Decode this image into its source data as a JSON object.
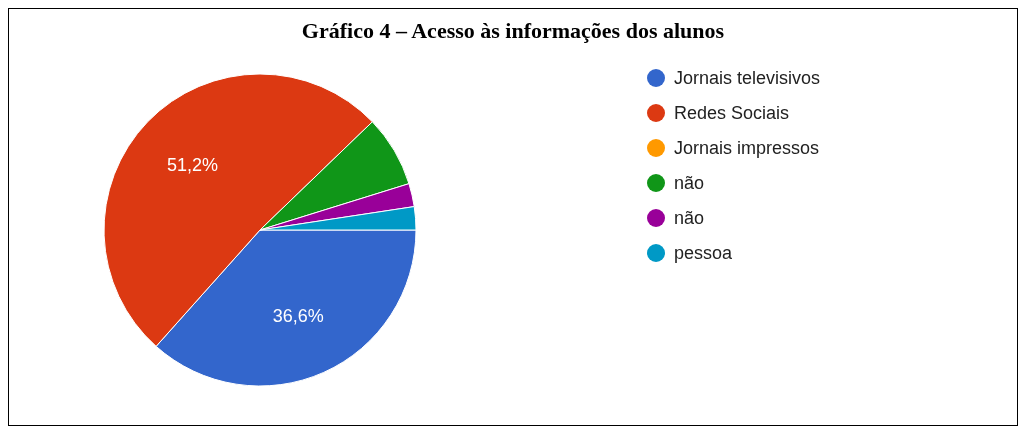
{
  "chart_data": {
    "type": "pie",
    "title": "Gráfico 4 – Acesso às informações dos alunos",
    "categories": [
      "Jornais televisivos",
      "Redes Sociais",
      "Jornais impressos",
      "não",
      "não",
      "pessoa"
    ],
    "values": [
      36.6,
      51.2,
      0,
      7.4,
      2.4,
      2.4
    ],
    "colors": [
      "#3366cc",
      "#dc3912",
      "#ff9900",
      "#109618",
      "#990099",
      "#0099c6"
    ],
    "value_labels": [
      "36,6%",
      "51,2%",
      null,
      null,
      null,
      null
    ],
    "legend": "top right"
  }
}
